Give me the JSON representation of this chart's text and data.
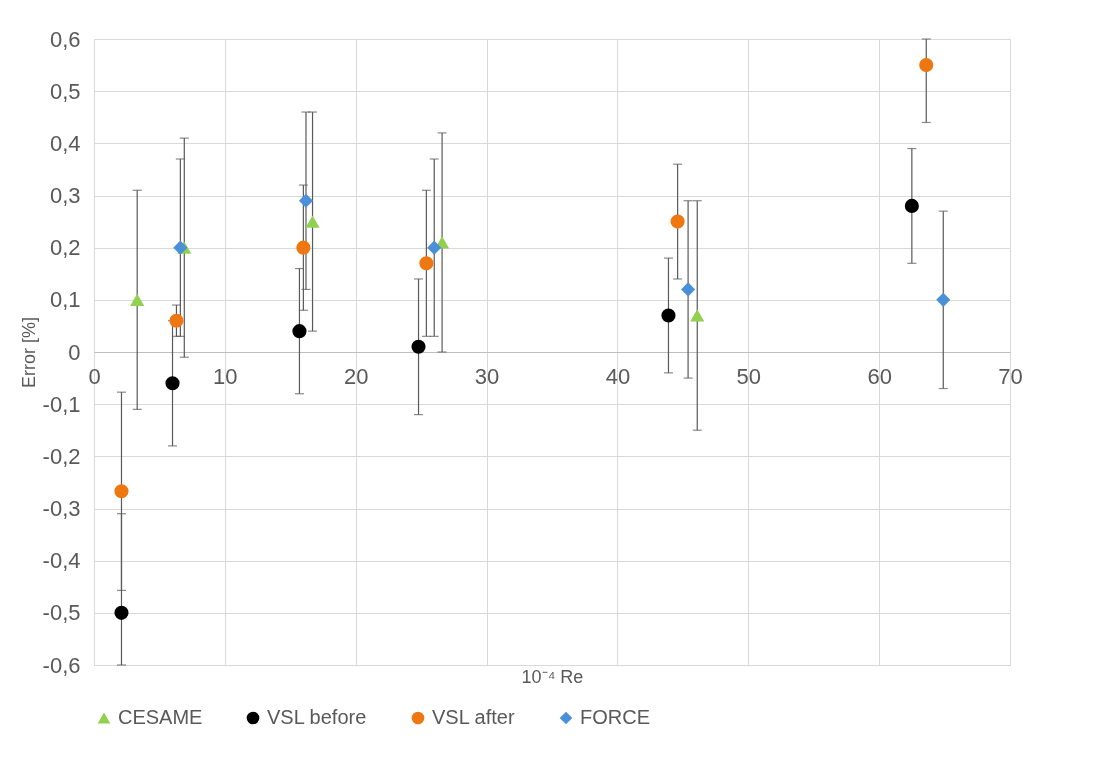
{
  "chart_data": {
    "type": "scatter",
    "xlabel": "10⁻⁴ Re",
    "ylabel": "Error [%]",
    "xlim": [
      0,
      70
    ],
    "xticks": [
      0,
      10,
      20,
      30,
      40,
      50,
      60,
      70
    ],
    "ylim": [
      -0.6,
      0.6
    ],
    "yticks": [
      {
        "value": -0.6,
        "label": "-0,6"
      },
      {
        "value": -0.5,
        "label": "-0,5"
      },
      {
        "value": -0.4,
        "label": "-0,4"
      },
      {
        "value": -0.3,
        "label": "-0,3"
      },
      {
        "value": -0.2,
        "label": "-0,2"
      },
      {
        "value": -0.1,
        "label": "-0,1"
      },
      {
        "value": 0,
        "label": "0"
      },
      {
        "value": 0.1,
        "label": "0,1"
      },
      {
        "value": 0.2,
        "label": "0,2"
      },
      {
        "value": 0.3,
        "label": "0,3"
      },
      {
        "value": 0.4,
        "label": "0,4"
      },
      {
        "value": 0.5,
        "label": "0,5"
      },
      {
        "value": 0.6,
        "label": "0,6"
      }
    ],
    "grid": true,
    "legend": "bottom",
    "series": [
      {
        "name": "CESAME",
        "color": "#92d050",
        "marker": "triangle",
        "x": [
          3.3,
          6.9,
          16.7,
          26.6,
          46.1
        ],
        "values": [
          0.1,
          0.2,
          0.25,
          0.21,
          0.07
        ],
        "errors": [
          0.21,
          0.21,
          0.21,
          0.21,
          0.22
        ]
      },
      {
        "name": "VSL before",
        "color": "#000000",
        "marker": "circle",
        "x": [
          2.1,
          6.0,
          15.7,
          24.8,
          43.9,
          62.5
        ],
        "values": [
          -0.5,
          -0.06,
          0.04,
          0.01,
          0.07,
          0.28
        ],
        "errors": [
          [
            -0.6,
            -0.31
          ],
          0.12,
          0.12,
          0.13,
          0.11,
          0.11
        ]
      },
      {
        "name": "VSL after",
        "color": "#ee7711",
        "marker": "circle",
        "x": [
          2.1,
          6.3,
          16.0,
          25.4,
          44.6,
          63.6
        ],
        "values": [
          -0.267,
          0.06,
          0.2,
          0.17,
          0.25,
          0.55
        ],
        "errors": [
          0.19,
          0.03,
          0.12,
          0.14,
          0.11,
          [
            0.44,
            0.6
          ]
        ]
      },
      {
        "name": "FORCE",
        "color": "#4a90d9",
        "marker": "diamond",
        "x": [
          6.6,
          16.2,
          26.0,
          45.4,
          64.9
        ],
        "values": [
          0.2,
          0.29,
          0.2,
          0.12,
          0.1
        ],
        "errors": [
          0.17,
          0.17,
          0.17,
          0.17,
          0.17
        ]
      }
    ]
  }
}
